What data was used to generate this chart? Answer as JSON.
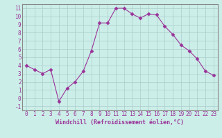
{
  "x": [
    0,
    1,
    2,
    3,
    4,
    5,
    6,
    7,
    8,
    9,
    10,
    11,
    12,
    13,
    14,
    15,
    16,
    17,
    18,
    19,
    20,
    21,
    22,
    23
  ],
  "y": [
    4.0,
    3.5,
    3.0,
    3.5,
    -0.4,
    1.2,
    2.0,
    3.3,
    5.8,
    9.2,
    9.2,
    11.0,
    11.0,
    10.3,
    9.8,
    10.3,
    10.2,
    8.8,
    7.8,
    6.5,
    5.8,
    4.8,
    3.3,
    2.8
  ],
  "line_color": "#993399",
  "marker": "D",
  "marker_size": 2.5,
  "bg_color": "#cceee8",
  "grid_color": "#aacccc",
  "xlabel": "Windchill (Refroidissement éolien,°C)",
  "xlim": [
    -0.5,
    23.5
  ],
  "ylim": [
    -1.5,
    11.5
  ],
  "yticks": [
    -1,
    0,
    1,
    2,
    3,
    4,
    5,
    6,
    7,
    8,
    9,
    10,
    11
  ],
  "xticks": [
    0,
    1,
    2,
    3,
    4,
    5,
    6,
    7,
    8,
    9,
    10,
    11,
    12,
    13,
    14,
    15,
    16,
    17,
    18,
    19,
    20,
    21,
    22,
    23
  ],
  "tick_fontsize": 5.5,
  "xlabel_fontsize": 6.0,
  "spine_color": "#888888"
}
